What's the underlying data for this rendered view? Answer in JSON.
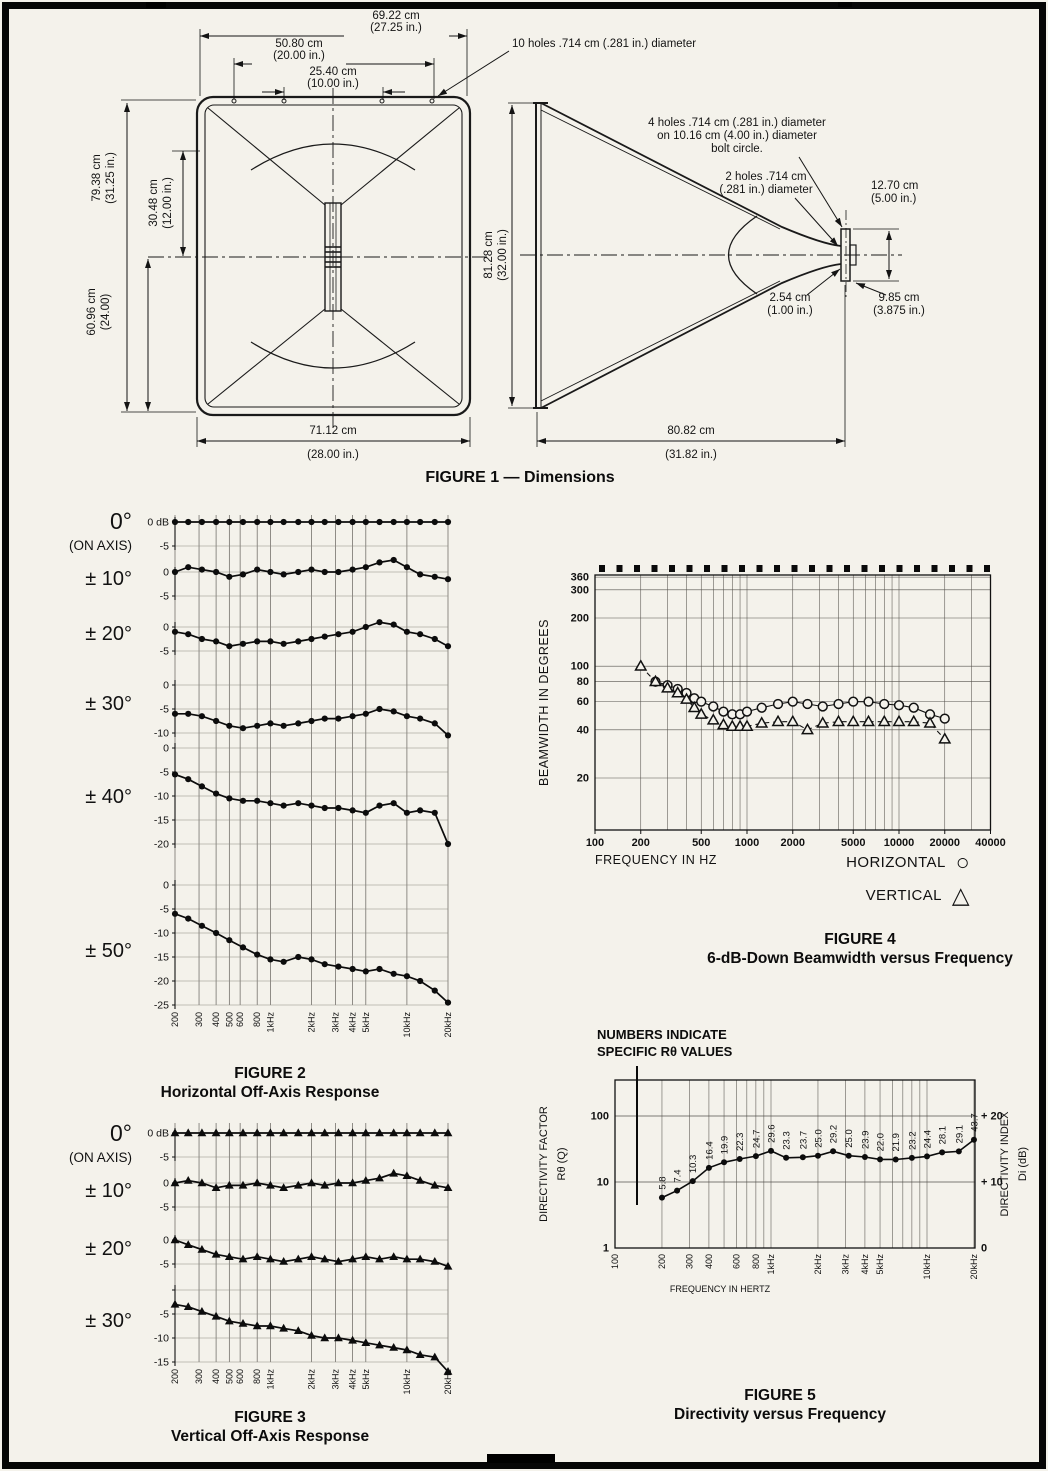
{
  "figure1": {
    "caption": "FIGURE 1 — Dimensions",
    "callout_10holes": "10 holes .714 cm (.281 in.) diameter",
    "callout_4holes": [
      "4 holes .714 cm (.281 in.) diameter",
      "on 10.16 cm (4.00 in.) diameter",
      "bolt circle."
    ],
    "callout_2holes": [
      "2 holes .714 cm",
      "(.281 in.) diameter"
    ],
    "dims": {
      "top_overall": [
        "69.22 cm",
        "(27.25 in.)"
      ],
      "top_bolt_span": [
        "50.80 cm",
        "(20.00 in.)"
      ],
      "top_bolt_half": [
        "25.40 cm",
        "(10.00 in.)"
      ],
      "left_height": [
        "79.38 cm",
        "(31.25 in.)"
      ],
      "left_inner": [
        "30.48 cm",
        "(12.00 in.)"
      ],
      "left_lower": [
        "60.96 cm",
        "(24.00)"
      ],
      "bottom_width": [
        "71.12 cm",
        "(28.00 in.)"
      ],
      "side_height": [
        "81.28 cm",
        "(32.00 in.)"
      ],
      "throat_flange": [
        "12.70 cm",
        "(5.00 in.)"
      ],
      "throat_depth": [
        "2.54 cm",
        "(1.00 in.)"
      ],
      "throat_width": [
        "9.85 cm",
        "(3.875 in.)"
      ],
      "side_depth": [
        "80.82 cm",
        "(31.82 in.)"
      ]
    }
  },
  "figure2": {
    "caption": [
      "FIGURE 2",
      "Horizontal Off-Axis Response"
    ]
  },
  "figure3": {
    "caption": [
      "FIGURE 3",
      "Vertical Off-Axis Response"
    ]
  },
  "figure4": {
    "caption": [
      "FIGURE 4",
      "6-dB-Down Beamwidth versus Frequency"
    ]
  },
  "figure5": {
    "caption": [
      "FIGURE 5",
      "Directivity versus Frequency"
    ]
  },
  "chart_data": [
    {
      "id": "figure2",
      "type": "line",
      "title": "Horizontal Off-Axis Response",
      "ylabel": "dB",
      "x_freq_hz": [
        200,
        250,
        315,
        400,
        500,
        630,
        800,
        1000,
        1250,
        1600,
        2000,
        2500,
        3150,
        4000,
        5000,
        6300,
        8000,
        10000,
        12500,
        16000,
        20000
      ],
      "x_tick_hz": [
        200,
        300,
        400,
        500,
        600,
        800,
        1000,
        2000,
        3000,
        4000,
        5000,
        10000,
        20000
      ],
      "x_tick_labels": [
        "200",
        "300",
        "400",
        "500",
        "600",
        "800",
        "1kHz",
        "2kHz",
        "3kHz",
        "4kHz",
        "5kHz",
        "10kHz",
        "20kHz"
      ],
      "panels": [
        {
          "label": "0°",
          "sublabel": "(ON AXIS)",
          "ticks": [
            [
              0,
              "0 dB"
            ],
            [
              -5,
              "-5"
            ]
          ],
          "values_db": [
            0,
            0,
            0,
            0,
            0,
            0,
            0,
            0,
            0,
            0,
            0,
            0,
            0,
            0,
            0,
            0,
            0,
            0,
            0,
            0,
            0
          ]
        },
        {
          "label": "± 10°",
          "ticks": [
            [
              0,
              "0"
            ],
            [
              -5,
              "-5"
            ]
          ],
          "values_db": [
            0,
            1,
            0.5,
            0,
            -1,
            -0.5,
            0.5,
            0,
            -0.5,
            0,
            0.5,
            0,
            0,
            0.5,
            1,
            2,
            2.5,
            1,
            -0.5,
            -1,
            -1.5
          ]
        },
        {
          "label": "± 20°",
          "ticks": [
            [
              0,
              "0"
            ],
            [
              -5,
              "-5"
            ]
          ],
          "values_db": [
            -1,
            -1.5,
            -2.5,
            -3,
            -4,
            -3.5,
            -3,
            -3,
            -3.5,
            -3,
            -2.5,
            -2,
            -1.5,
            -1,
            0,
            1,
            0.5,
            -1,
            -1.5,
            -2.5,
            -4
          ]
        },
        {
          "label": "± 30°",
          "ticks": [
            [
              0,
              "0"
            ],
            [
              -5,
              "-5"
            ],
            [
              -10,
              "-10"
            ]
          ],
          "values_db": [
            -6,
            -6,
            -6.5,
            -7.5,
            -8.5,
            -9,
            -8.5,
            -8,
            -8.5,
            -8,
            -7.5,
            -7,
            -7,
            -6.5,
            -6,
            -5,
            -5.5,
            -6.5,
            -7,
            -8,
            -10.5
          ]
        },
        {
          "label": "± 40°",
          "ticks": [
            [
              0,
              "0"
            ],
            [
              -5,
              "-5"
            ],
            [
              -10,
              "-10"
            ],
            [
              -15,
              "-15"
            ],
            [
              -20,
              "-20"
            ]
          ],
          "values_db": [
            -5.5,
            -6.5,
            -8,
            -9.5,
            -10.5,
            -11,
            -11,
            -11.5,
            -12,
            -11.5,
            -12,
            -12.5,
            -12.5,
            -13,
            -13.5,
            -12,
            -11.5,
            -13.5,
            -13,
            -13.5,
            -20
          ]
        },
        {
          "label": "± 50°",
          "ticks": [
            [
              0,
              "0"
            ],
            [
              -5,
              "-5"
            ],
            [
              -10,
              "-10"
            ],
            [
              -15,
              "-15"
            ],
            [
              -20,
              "-20"
            ],
            [
              -25,
              "-25"
            ]
          ],
          "values_db": [
            -6,
            -7,
            -8.5,
            -10,
            -11.5,
            -13,
            -14.5,
            -15.5,
            -16,
            -15,
            -15.5,
            -16.5,
            -17,
            -17.5,
            -18,
            -17.5,
            -18.5,
            -19,
            -20,
            -22,
            -24.5
          ]
        }
      ]
    },
    {
      "id": "figure3",
      "type": "line",
      "title": "Vertical Off-Axis Response",
      "ylabel": "dB",
      "x_freq_hz": [
        200,
        250,
        315,
        400,
        500,
        630,
        800,
        1000,
        1250,
        1600,
        2000,
        2500,
        3150,
        4000,
        5000,
        6300,
        8000,
        10000,
        12500,
        16000,
        20000
      ],
      "x_tick_hz": [
        200,
        300,
        400,
        500,
        600,
        800,
        1000,
        2000,
        3000,
        4000,
        5000,
        10000,
        20000
      ],
      "x_tick_labels": [
        "200",
        "300",
        "400",
        "500",
        "600",
        "800",
        "1kHz",
        "2kHz",
        "3kHz",
        "4kHz",
        "5kHz",
        "10kHz",
        "20kHz"
      ],
      "panels": [
        {
          "label": "0°",
          "sublabel": "(ON AXIS)",
          "ticks": [
            [
              0,
              "0 dB"
            ],
            [
              -5,
              "-5"
            ]
          ],
          "values_db": [
            0,
            0,
            0,
            0,
            0,
            0,
            0,
            0,
            0,
            0,
            0,
            0,
            0,
            0,
            0,
            0,
            0,
            0,
            0,
            0,
            0
          ]
        },
        {
          "label": "± 10°",
          "ticks": [
            [
              0,
              "0"
            ],
            [
              -5,
              "-5"
            ]
          ],
          "values_db": [
            0,
            0.5,
            0,
            -1,
            -0.5,
            -0.5,
            0,
            -0.5,
            -1,
            -0.5,
            0,
            -0.5,
            0,
            0,
            0.5,
            1,
            2,
            1.5,
            0.5,
            -0.5,
            -1
          ]
        },
        {
          "label": "± 20°",
          "ticks": [
            [
              0,
              "0"
            ],
            [
              -5,
              "-5"
            ]
          ],
          "values_db": [
            0,
            -1,
            -2,
            -3,
            -3.5,
            -4,
            -3.5,
            -4,
            -4.5,
            -4,
            -3.5,
            -4,
            -4.5,
            -4,
            -3.5,
            -4,
            -3.5,
            -4,
            -4,
            -4.5,
            -5.5
          ]
        },
        {
          "label": "± 30°",
          "ticks": [
            [
              0,
              ""
            ],
            [
              -5,
              "-5"
            ],
            [
              -10,
              "-10"
            ],
            [
              -15,
              "-15"
            ]
          ],
          "values_db": [
            -3,
            -3.5,
            -4.5,
            -5.5,
            -6.5,
            -7,
            -7.5,
            -7.5,
            -8,
            -8.5,
            -9.5,
            -10,
            -10,
            -10.5,
            -11,
            -11.5,
            -12,
            -12.5,
            -13.5,
            -14,
            -17
          ]
        }
      ]
    },
    {
      "id": "figure4",
      "type": "scatter",
      "title": "6-dB-Down Beamwidth versus Frequency",
      "ylabel": "BEAMWIDTH IN DEGREES",
      "xlabel": "FREQUENCY IN HZ",
      "ylim": [
        20,
        370
      ],
      "xlim": [
        100,
        40000
      ],
      "y_ticks": [
        360,
        300,
        200,
        100,
        80,
        60,
        40,
        20
      ],
      "x_ticks": [
        100,
        200,
        500,
        1000,
        2000,
        5000,
        10000,
        20000,
        40000
      ],
      "x_tick_labels": [
        "100",
        "200",
        "500",
        "1000",
        "2000",
        "5000",
        "10000",
        "20000",
        "40000"
      ],
      "series": [
        {
          "name": "HORIZONTAL",
          "marker": "circle",
          "marker_glyph": "○",
          "x_hz": [
            250,
            300,
            350,
            400,
            450,
            500,
            600,
            700,
            800,
            900,
            1000,
            1250,
            1600,
            2000,
            2500,
            3150,
            4000,
            5000,
            6300,
            8000,
            10000,
            12500,
            16000,
            20000
          ],
          "beamwidth_deg": [
            80,
            76,
            72,
            68,
            63,
            60,
            56,
            52,
            50,
            50,
            52,
            55,
            58,
            60,
            58,
            56,
            58,
            60,
            60,
            58,
            57,
            55,
            50,
            47
          ]
        },
        {
          "name": "VERTICAL",
          "marker": "triangle",
          "marker_glyph": "△",
          "x_hz": [
            200,
            250,
            300,
            350,
            400,
            450,
            500,
            600,
            700,
            800,
            900,
            1000,
            1250,
            1600,
            2000,
            2500,
            3150,
            4000,
            5000,
            6300,
            8000,
            10000,
            12500,
            16000,
            20000
          ],
          "beamwidth_deg": [
            100,
            80,
            73,
            68,
            62,
            55,
            50,
            46,
            43,
            42,
            42,
            42,
            44,
            45,
            45,
            40,
            44,
            45,
            45,
            45,
            45,
            45,
            45,
            44,
            35
          ]
        }
      ]
    },
    {
      "id": "figure5",
      "type": "line",
      "title": "Directivity versus Frequency",
      "annotation": [
        "NUMBERS INDICATE",
        "SPECIFIC Rθ VALUES"
      ],
      "ylabel_left": [
        "DIRECTIVITY FACTOR",
        "Rθ (Q)"
      ],
      "ylabel_right": [
        "DIRECTIVITY INDEX",
        "Di (dB)"
      ],
      "xlabel": "FREQUENCY IN HERTZ",
      "left_ticks": [
        "100",
        "10",
        "1"
      ],
      "left_tick_values": [
        100,
        10,
        1
      ],
      "right_ticks": [
        "+ 20",
        "+ 10",
        "0"
      ],
      "right_tick_values": [
        100,
        10,
        1
      ],
      "x_tick_hz": [
        100,
        200,
        300,
        400,
        600,
        800,
        1000,
        2000,
        3000,
        4000,
        5000,
        10000,
        20000
      ],
      "x_tick_labels": [
        "100",
        "200",
        "300",
        "400",
        "600",
        "800",
        "1kHz",
        "2kHz",
        "3kHz",
        "4kHz",
        "5kHz",
        "10kHz",
        "20kHz"
      ],
      "x_hz": [
        200,
        250,
        315,
        400,
        500,
        630,
        800,
        1000,
        1250,
        1600,
        2000,
        2500,
        3150,
        4000,
        5000,
        6300,
        8000,
        10000,
        12500,
        16000,
        20000
      ],
      "q_values": [
        5.8,
        7.4,
        10.3,
        16.4,
        19.9,
        22.3,
        24.7,
        29.6,
        23.3,
        23.7,
        25.0,
        29.2,
        25.0,
        23.9,
        22.0,
        21.9,
        23.2,
        24.4,
        28.1,
        29.1,
        43.7
      ],
      "value_labels": [
        "5.8",
        "7.4",
        "10.3",
        "16.4",
        "19.9",
        "22.3",
        "24.7",
        "29.6",
        "23.3",
        "23.7",
        "25.0",
        "29.2",
        "25.0",
        "23.9",
        "22.0",
        "21.9",
        "23.2",
        "24.4",
        "28.1",
        "29.1",
        "43.7"
      ]
    }
  ]
}
